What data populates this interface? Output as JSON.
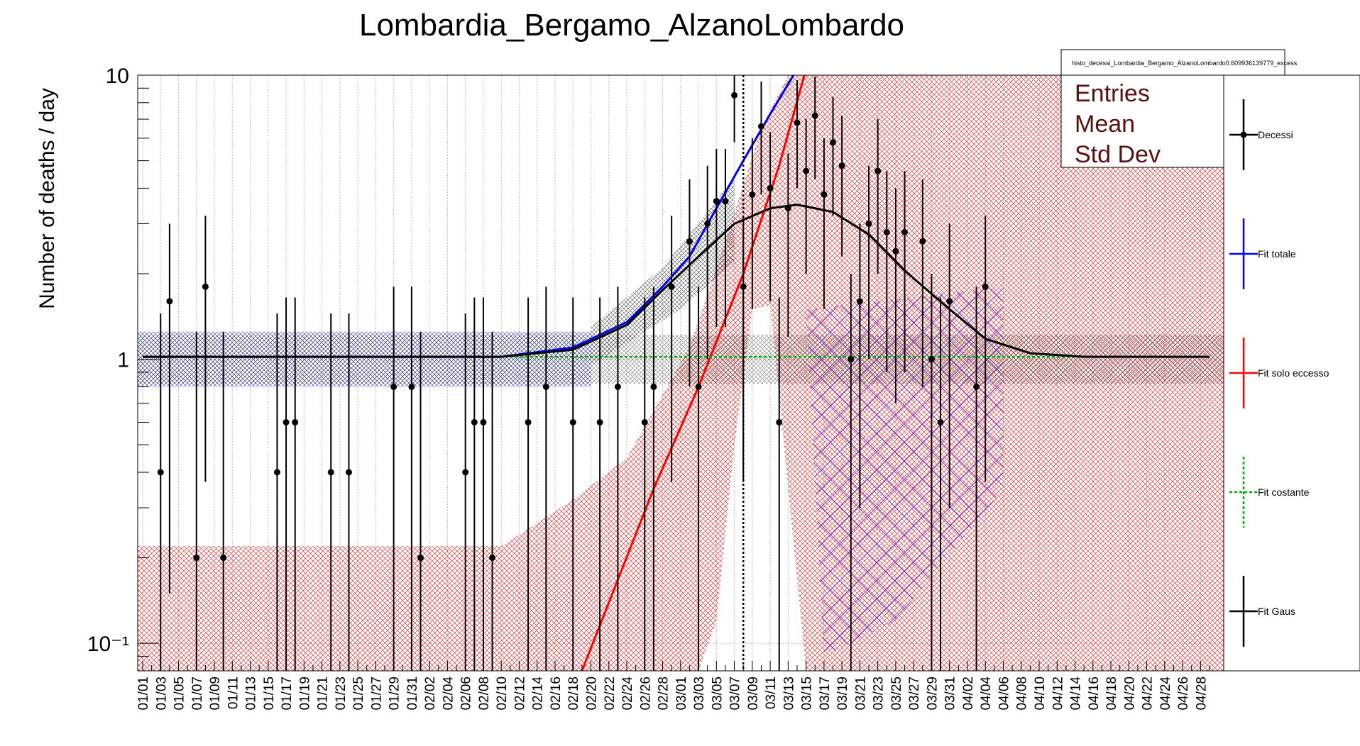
{
  "chart_data": {
    "type": "scatter",
    "title": "Lombardia_Bergamo_AlzanoLombardo",
    "ylabel": "Number of deaths / day",
    "xlabel": "",
    "y_scale": "log",
    "ylim": [
      0.08,
      10
    ],
    "y_tick_labels": [
      {
        "value": 10,
        "label": "10"
      },
      {
        "value": 1,
        "label": "1"
      },
      {
        "value": 0.1,
        "label": "10⁻¹"
      }
    ],
    "x_tick_labels": [
      "01/01",
      "01/03",
      "01/05",
      "01/07",
      "01/09",
      "01/11",
      "01/13",
      "01/15",
      "01/17",
      "01/19",
      "01/21",
      "01/23",
      "01/25",
      "01/27",
      "01/29",
      "01/31",
      "02/02",
      "02/04",
      "02/06",
      "02/08",
      "02/10",
      "02/12",
      "02/14",
      "02/16",
      "02/18",
      "02/20",
      "02/22",
      "02/24",
      "02/26",
      "02/28",
      "03/01",
      "03/03",
      "03/05",
      "03/07",
      "03/09",
      "03/11",
      "03/13",
      "03/15",
      "03/17",
      "03/19",
      "03/21",
      "03/23",
      "03/25",
      "03/27",
      "03/29",
      "03/31",
      "04/02",
      "04/04",
      "04/06",
      "04/08",
      "04/10",
      "04/12",
      "04/14",
      "04/16",
      "04/18",
      "04/20",
      "04/22",
      "04/24",
      "04/26",
      "04/28"
    ],
    "grid": true,
    "vertical_marker_date": "03/08",
    "stats_box": {
      "title": "histo_decessi_Lombardia_Bergamo_AlzanoLombardo0.609936139779_excess",
      "rows": [
        "Entries",
        "Mean",
        "Std Dev"
      ]
    },
    "legend": {
      "placement": "right",
      "entries": [
        {
          "label": "Decessi",
          "color": "#000000",
          "style": "marker"
        },
        {
          "label": "Fit totale",
          "color": "#0000ff",
          "style": "line"
        },
        {
          "label": "Fit solo eccesso",
          "color": "#ff0000",
          "style": "line"
        },
        {
          "label": "Fit costante",
          "color": "#00aa00",
          "style": "dashed"
        },
        {
          "label": "Fit Gaus",
          "color": "#000000",
          "style": "line"
        }
      ]
    },
    "series": [
      {
        "name": "Decessi",
        "points": [
          {
            "x": "01/03",
            "y": 0.4,
            "lo": 0.08,
            "hi": 1.45
          },
          {
            "x": "01/04",
            "y": 1.6,
            "lo": 0.15,
            "hi": 3.0
          },
          {
            "x": "01/07",
            "y": 0.2,
            "lo": 0.08,
            "hi": 1.25
          },
          {
            "x": "01/08",
            "y": 1.8,
            "lo": 0.37,
            "hi": 3.2
          },
          {
            "x": "01/10",
            "y": 0.2,
            "lo": 0.08,
            "hi": 1.25
          },
          {
            "x": "01/16",
            "y": 0.4,
            "lo": 0.08,
            "hi": 1.45
          },
          {
            "x": "01/17",
            "y": 0.6,
            "lo": 0.08,
            "hi": 1.65
          },
          {
            "x": "01/18",
            "y": 0.6,
            "lo": 0.08,
            "hi": 1.65
          },
          {
            "x": "01/22",
            "y": 0.4,
            "lo": 0.08,
            "hi": 1.45
          },
          {
            "x": "01/24",
            "y": 0.4,
            "lo": 0.08,
            "hi": 1.45
          },
          {
            "x": "01/29",
            "y": 0.8,
            "lo": 0.08,
            "hi": 1.8
          },
          {
            "x": "01/31",
            "y": 0.8,
            "lo": 0.08,
            "hi": 1.8
          },
          {
            "x": "02/01",
            "y": 0.2,
            "lo": 0.08,
            "hi": 1.25
          },
          {
            "x": "02/06",
            "y": 0.4,
            "lo": 0.08,
            "hi": 1.45
          },
          {
            "x": "02/07",
            "y": 0.6,
            "lo": 0.08,
            "hi": 1.65
          },
          {
            "x": "02/08",
            "y": 0.6,
            "lo": 0.08,
            "hi": 1.65
          },
          {
            "x": "02/09",
            "y": 0.2,
            "lo": 0.08,
            "hi": 1.25
          },
          {
            "x": "02/13",
            "y": 0.6,
            "lo": 0.08,
            "hi": 1.65
          },
          {
            "x": "02/15",
            "y": 0.8,
            "lo": 0.08,
            "hi": 1.8
          },
          {
            "x": "02/18",
            "y": 0.6,
            "lo": 0.08,
            "hi": 1.65
          },
          {
            "x": "02/21",
            "y": 0.6,
            "lo": 0.08,
            "hi": 1.65
          },
          {
            "x": "02/23",
            "y": 0.8,
            "lo": 0.08,
            "hi": 1.8
          },
          {
            "x": "02/26",
            "y": 0.6,
            "lo": 0.08,
            "hi": 1.65
          },
          {
            "x": "02/27",
            "y": 0.8,
            "lo": 0.08,
            "hi": 1.8
          },
          {
            "x": "02/29",
            "y": 1.8,
            "lo": 0.37,
            "hi": 3.2
          },
          {
            "x": "03/02",
            "y": 2.6,
            "lo": 0.8,
            "hi": 4.3
          },
          {
            "x": "03/03",
            "y": 0.8,
            "lo": 0.08,
            "hi": 1.8
          },
          {
            "x": "03/04",
            "y": 3.0,
            "lo": 1.0,
            "hi": 4.8
          },
          {
            "x": "03/05",
            "y": 3.6,
            "lo": 1.3,
            "hi": 5.5
          },
          {
            "x": "03/06",
            "y": 3.6,
            "lo": 1.3,
            "hi": 5.5
          },
          {
            "x": "03/07",
            "y": 8.5,
            "lo": 5.8,
            "hi": 10
          },
          {
            "x": "03/08",
            "y": 1.8,
            "lo": 0.37,
            "hi": 3.2
          },
          {
            "x": "03/09",
            "y": 3.8,
            "lo": 1.5,
            "hi": 6.0
          },
          {
            "x": "03/10",
            "y": 6.6,
            "lo": 3.8,
            "hi": 9.5
          },
          {
            "x": "03/11",
            "y": 4.0,
            "lo": 1.6,
            "hi": 6.3
          },
          {
            "x": "03/12",
            "y": 0.6,
            "lo": 0.08,
            "hi": 1.65
          },
          {
            "x": "03/13",
            "y": 3.4,
            "lo": 1.2,
            "hi": 5.3
          },
          {
            "x": "03/14",
            "y": 6.8,
            "lo": 4.0,
            "hi": 9.6
          },
          {
            "x": "03/15",
            "y": 4.6,
            "lo": 2.0,
            "hi": 7.0
          },
          {
            "x": "03/16",
            "y": 7.2,
            "lo": 4.3,
            "hi": 9.9
          },
          {
            "x": "03/17",
            "y": 3.8,
            "lo": 1.5,
            "hi": 6.0
          },
          {
            "x": "03/18",
            "y": 5.8,
            "lo": 3.2,
            "hi": 8.4
          },
          {
            "x": "03/19",
            "y": 4.8,
            "lo": 2.3,
            "hi": 7.2
          },
          {
            "x": "03/20",
            "y": 1.0,
            "lo": 0.08,
            "hi": 2.0
          },
          {
            "x": "03/21",
            "y": 1.6,
            "lo": 0.3,
            "hi": 3.0
          },
          {
            "x": "03/22",
            "y": 3.0,
            "lo": 1.0,
            "hi": 4.8
          },
          {
            "x": "03/23",
            "y": 4.6,
            "lo": 2.0,
            "hi": 7.0
          },
          {
            "x": "03/24",
            "y": 2.8,
            "lo": 0.9,
            "hi": 4.6
          },
          {
            "x": "03/25",
            "y": 2.4,
            "lo": 0.7,
            "hi": 4.0
          },
          {
            "x": "03/26",
            "y": 2.8,
            "lo": 0.9,
            "hi": 4.6
          },
          {
            "x": "03/28",
            "y": 2.6,
            "lo": 0.8,
            "hi": 4.3
          },
          {
            "x": "03/29",
            "y": 1.0,
            "lo": 0.08,
            "hi": 2.0
          },
          {
            "x": "03/30",
            "y": 0.6,
            "lo": 0.08,
            "hi": 1.65
          },
          {
            "x": "03/31",
            "y": 1.6,
            "lo": 0.3,
            "hi": 3.0
          },
          {
            "x": "04/03",
            "y": 0.8,
            "lo": 0.08,
            "hi": 1.8
          },
          {
            "x": "04/04",
            "y": 1.8,
            "lo": 0.37,
            "hi": 3.2
          }
        ]
      },
      {
        "name": "Fit totale",
        "points": [
          {
            "x": "01/01",
            "y": 1.02
          },
          {
            "x": "02/10",
            "y": 1.02
          },
          {
            "x": "02/18",
            "y": 1.1
          },
          {
            "x": "02/24",
            "y": 1.35
          },
          {
            "x": "02/28",
            "y": 1.8
          },
          {
            "x": "03/02",
            "y": 2.3
          },
          {
            "x": "03/05",
            "y": 3.4
          },
          {
            "x": "03/08",
            "y": 5.0
          },
          {
            "x": "03/11",
            "y": 7.3
          },
          {
            "x": "03/14",
            "y": 10.5
          }
        ]
      },
      {
        "name": "Fit solo eccesso",
        "points": [
          {
            "x": "02/19",
            "y": 0.08
          },
          {
            "x": "02/27",
            "y": 0.35
          },
          {
            "x": "03/03",
            "y": 0.8
          },
          {
            "x": "03/08",
            "y": 2.0
          },
          {
            "x": "03/12",
            "y": 4.8
          },
          {
            "x": "03/15",
            "y": 10.5
          }
        ]
      },
      {
        "name": "Fit costante",
        "points": [
          {
            "x": "01/01",
            "y": 1.02
          },
          {
            "x": "04/29",
            "y": 1.02
          }
        ]
      },
      {
        "name": "Fit Gaus",
        "points": [
          {
            "x": "01/01",
            "y": 1.02
          },
          {
            "x": "02/10",
            "y": 1.02
          },
          {
            "x": "02/18",
            "y": 1.08
          },
          {
            "x": "02/24",
            "y": 1.32
          },
          {
            "x": "02/28",
            "y": 1.75
          },
          {
            "x": "03/03",
            "y": 2.3
          },
          {
            "x": "03/07",
            "y": 3.0
          },
          {
            "x": "03/11",
            "y": 3.4
          },
          {
            "x": "03/14",
            "y": 3.5
          },
          {
            "x": "03/18",
            "y": 3.3
          },
          {
            "x": "03/22",
            "y": 2.75
          },
          {
            "x": "03/26",
            "y": 2.05
          },
          {
            "x": "03/31",
            "y": 1.5
          },
          {
            "x": "04/04",
            "y": 1.18
          },
          {
            "x": "04/09",
            "y": 1.05
          },
          {
            "x": "04/15",
            "y": 1.02
          },
          {
            "x": "04/29",
            "y": 1.02
          }
        ]
      }
    ]
  }
}
